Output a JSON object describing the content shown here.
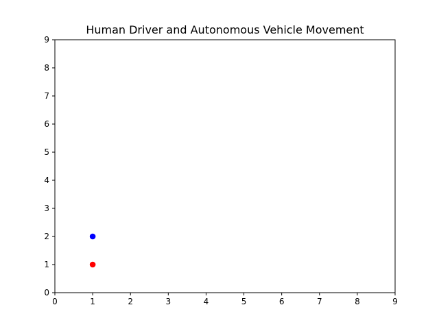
{
  "chart_data": {
    "type": "scatter",
    "title": "Human Driver and Autonomous Vehicle Movement",
    "xlabel": "",
    "ylabel": "",
    "xlim": [
      0,
      9
    ],
    "ylim": [
      0,
      9
    ],
    "x_ticks": [
      "0",
      "1",
      "2",
      "3",
      "4",
      "5",
      "6",
      "7",
      "8",
      "9"
    ],
    "y_ticks": [
      "0",
      "1",
      "2",
      "3",
      "4",
      "5",
      "6",
      "7",
      "8",
      "9"
    ],
    "grid": false,
    "legend": "none",
    "series": [
      {
        "color": "#0000ff",
        "points": [
          {
            "x": 1,
            "y": 2
          }
        ]
      },
      {
        "color": "#ff0000",
        "points": [
          {
            "x": 1,
            "y": 1
          }
        ]
      }
    ]
  }
}
